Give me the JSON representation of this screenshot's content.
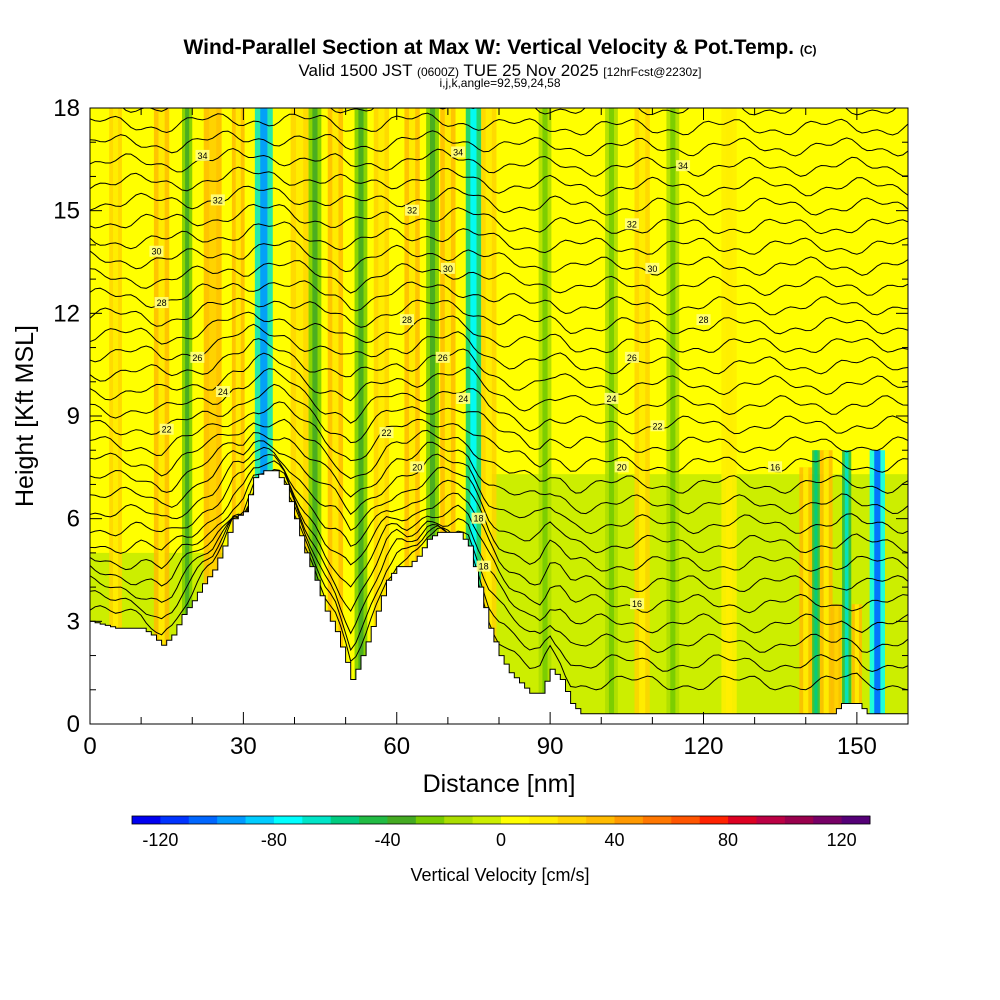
{
  "title": {
    "main": "Wind-Parallel Section at Max W: Vertical Velocity & Pot.Temp.",
    "copyright": "(C)",
    "valid_prefix": "Valid 1500 JST",
    "valid_utc": "(0600Z)",
    "valid_date": "TUE 25 Nov 2025",
    "forecast": "[12hrFcst@2230z]",
    "indices": "i,j,k,angle=92,59,24,58"
  },
  "chart_data": {
    "type": "heatmap",
    "title": "Wind-Parallel Section at Max W: Vertical Velocity & Pot.Temp.",
    "xlabel": "Distance [nm]",
    "ylabel": "Height [Kft MSL]",
    "xlim": [
      0,
      160
    ],
    "ylim": [
      0,
      18
    ],
    "xticks": [
      0,
      30,
      60,
      90,
      120,
      150
    ],
    "yticks": [
      0,
      3,
      6,
      9,
      12,
      15,
      18
    ],
    "colorbar": {
      "label": "Vertical Velocity [cm/s]",
      "ticks": [
        -120,
        -80,
        -40,
        0,
        40,
        80,
        120
      ],
      "min": -130,
      "max": 130,
      "colors": [
        "#0000f0",
        "#0033ff",
        "#0066ff",
        "#0099ff",
        "#00ccff",
        "#00ffff",
        "#00e5c8",
        "#00cc80",
        "#22bb44",
        "#44aa22",
        "#77cc00",
        "#aadd00",
        "#ccee00",
        "#ffff00",
        "#ffee00",
        "#ffd400",
        "#ffbb00",
        "#ff9900",
        "#ff7700",
        "#ff5500",
        "#ff2200",
        "#dd0022",
        "#bb0044",
        "#99004d",
        "#770066",
        "#550077"
      ]
    },
    "terrain_kft": [
      [
        0,
        3.0
      ],
      [
        5,
        2.8
      ],
      [
        10,
        2.8
      ],
      [
        12,
        2.6
      ],
      [
        14,
        2.3
      ],
      [
        16,
        2.6
      ],
      [
        18,
        3.2
      ],
      [
        20,
        3.6
      ],
      [
        22,
        4.1
      ],
      [
        24,
        4.5
      ],
      [
        26,
        5.2
      ],
      [
        28,
        6.0
      ],
      [
        30,
        6.2
      ],
      [
        32,
        7.2
      ],
      [
        34,
        7.4
      ],
      [
        36,
        7.4
      ],
      [
        38,
        7.0
      ],
      [
        40,
        6.0
      ],
      [
        42,
        5.0
      ],
      [
        44,
        4.2
      ],
      [
        46,
        3.3
      ],
      [
        48,
        2.7
      ],
      [
        50,
        1.8
      ],
      [
        51,
        1.3
      ],
      [
        52,
        1.6
      ],
      [
        54,
        2.4
      ],
      [
        56,
        3.3
      ],
      [
        58,
        4.2
      ],
      [
        60,
        4.6
      ],
      [
        62,
        4.6
      ],
      [
        64,
        4.9
      ],
      [
        66,
        5.4
      ],
      [
        68,
        5.6
      ],
      [
        70,
        5.6
      ],
      [
        72,
        5.6
      ],
      [
        74,
        5.2
      ],
      [
        76,
        4.0
      ],
      [
        78,
        2.8
      ],
      [
        80,
        2.0
      ],
      [
        82,
        1.5
      ],
      [
        84,
        1.2
      ],
      [
        86,
        0.9
      ],
      [
        88,
        0.9
      ],
      [
        90,
        1.6
      ],
      [
        92,
        1.3
      ],
      [
        94,
        0.6
      ],
      [
        96,
        0.3
      ],
      [
        100,
        0.3
      ],
      [
        145,
        0.3
      ],
      [
        147,
        0.6
      ],
      [
        150,
        0.6
      ],
      [
        152,
        0.3
      ],
      [
        160,
        0.3
      ]
    ],
    "updraft_bands": [
      {
        "x": 5,
        "w": 2.5,
        "top_kft": 18,
        "value": 25
      },
      {
        "x": 14,
        "w": 3,
        "top_kft": 18,
        "value": 30
      },
      {
        "x": 24,
        "w": 3.5,
        "top_kft": 18,
        "value": 35
      },
      {
        "x": 29,
        "w": 2.5,
        "top_kft": 18,
        "value": 30
      },
      {
        "x": 41,
        "w": 3.5,
        "top_kft": 18,
        "value": 25
      },
      {
        "x": 48,
        "w": 3,
        "top_kft": 18,
        "value": 30
      },
      {
        "x": 57,
        "w": 3,
        "top_kft": 18,
        "value": 25
      },
      {
        "x": 63,
        "w": 3,
        "top_kft": 18,
        "value": 30
      },
      {
        "x": 70,
        "w": 3,
        "top_kft": 18,
        "value": 30
      },
      {
        "x": 78,
        "w": 3,
        "top_kft": 18,
        "value": 25
      },
      {
        "x": 108,
        "w": 3,
        "top_kft": 18,
        "value": 22
      },
      {
        "x": 125,
        "w": 3,
        "top_kft": 18,
        "value": 20
      },
      {
        "x": 140,
        "w": 2.5,
        "top_kft": 7.5,
        "value": 30
      },
      {
        "x": 144,
        "w": 2.5,
        "top_kft": 8,
        "value": 30
      },
      {
        "x": 146,
        "w": 2,
        "top_kft": 3.5,
        "value": 35
      },
      {
        "x": 150,
        "w": 2,
        "top_kft": 3.5,
        "value": 30
      }
    ],
    "downdraft_bands": [
      {
        "x": 19,
        "w": 2,
        "top_kft": 18,
        "value": -30
      },
      {
        "x": 34,
        "w": 3.5,
        "top_kft": 18,
        "value": -70
      },
      {
        "x": 44,
        "w": 2.5,
        "top_kft": 18,
        "value": -25
      },
      {
        "x": 53,
        "w": 2.5,
        "top_kft": 18,
        "value": -25
      },
      {
        "x": 67,
        "w": 2.5,
        "top_kft": 18,
        "value": -25
      },
      {
        "x": 75,
        "w": 3,
        "top_kft": 18,
        "value": -55
      },
      {
        "x": 89,
        "w": 2.5,
        "top_kft": 18,
        "value": -20
      },
      {
        "x": 102,
        "w": 2.5,
        "top_kft": 18,
        "value": -18
      },
      {
        "x": 114,
        "w": 2.5,
        "top_kft": 18,
        "value": -18
      },
      {
        "x": 142,
        "w": 1.5,
        "top_kft": 8,
        "value": -45
      },
      {
        "x": 148,
        "w": 1.8,
        "top_kft": 8,
        "value": -50
      },
      {
        "x": 154,
        "w": 3,
        "top_kft": 8,
        "value": -80
      }
    ],
    "isentrope_labels": [
      {
        "text": "34",
        "x": 22,
        "y": 16.6
      },
      {
        "text": "32",
        "x": 25,
        "y": 15.3
      },
      {
        "text": "30",
        "x": 13,
        "y": 13.8
      },
      {
        "text": "28",
        "x": 14,
        "y": 12.3
      },
      {
        "text": "26",
        "x": 21,
        "y": 10.7
      },
      {
        "text": "24",
        "x": 26,
        "y": 9.7
      },
      {
        "text": "22",
        "x": 15,
        "y": 8.6
      },
      {
        "text": "34",
        "x": 72,
        "y": 16.7
      },
      {
        "text": "32",
        "x": 63,
        "y": 15.0
      },
      {
        "text": "30",
        "x": 70,
        "y": 13.3
      },
      {
        "text": "28",
        "x": 62,
        "y": 11.8
      },
      {
        "text": "26",
        "x": 69,
        "y": 10.7
      },
      {
        "text": "24",
        "x": 73,
        "y": 9.5
      },
      {
        "text": "22",
        "x": 58,
        "y": 8.5
      },
      {
        "text": "20",
        "x": 64,
        "y": 7.5
      },
      {
        "text": "18",
        "x": 76,
        "y": 6.0
      },
      {
        "text": "18",
        "x": 77,
        "y": 4.6
      },
      {
        "text": "34",
        "x": 116,
        "y": 16.3
      },
      {
        "text": "32",
        "x": 106,
        "y": 14.6
      },
      {
        "text": "30",
        "x": 110,
        "y": 13.3
      },
      {
        "text": "28",
        "x": 120,
        "y": 11.8
      },
      {
        "text": "26",
        "x": 106,
        "y": 10.7
      },
      {
        "text": "24",
        "x": 102,
        "y": 9.5
      },
      {
        "text": "22",
        "x": 111,
        "y": 8.7
      },
      {
        "text": "20",
        "x": 104,
        "y": 7.5
      },
      {
        "text": "16",
        "x": 134,
        "y": 7.5
      },
      {
        "text": "16",
        "x": 107,
        "y": 3.5
      }
    ]
  }
}
